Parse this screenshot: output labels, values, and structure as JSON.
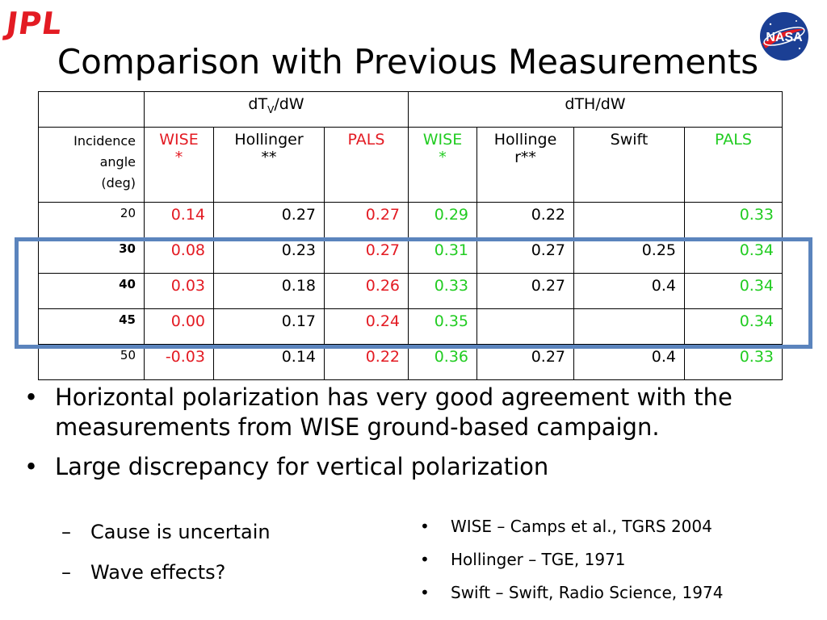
{
  "logo_left": "JPL",
  "logo_right": "NASA",
  "title": "Comparison with Previous Measurements",
  "colors": {
    "wise_pals_v": "#e31b23",
    "wise_pals_h": "#22cc22",
    "highlight": "#5b84bd",
    "jpl": "#e31b23"
  },
  "table": {
    "group_v_main": "dT",
    "group_v_sub": "V",
    "group_v_rest": "/dW",
    "group_h": "dTH/dW",
    "angle_label": [
      "Incidence",
      "angle",
      "(deg)"
    ],
    "cols": {
      "v_wise": [
        "WISE",
        "*"
      ],
      "v_hollinger": [
        "Hollinger",
        "**"
      ],
      "v_pals": "PALS",
      "h_wise": [
        "WISE",
        "*"
      ],
      "h_hollinger": [
        "Hollinge",
        "r**"
      ],
      "h_swift": "Swift",
      "h_pals": "PALS"
    },
    "rows": [
      {
        "angle": "20",
        "v_wise": "0.14",
        "v_hol": "0.27",
        "v_pals": "0.27",
        "h_wise": "0.29",
        "h_hol": "0.22",
        "h_swift": "",
        "h_pals": "0.33"
      },
      {
        "angle": "30",
        "v_wise": "0.08",
        "v_hol": "0.23",
        "v_pals": "0.27",
        "h_wise": "0.31",
        "h_hol": "0.27",
        "h_swift": "0.25",
        "h_pals": "0.34"
      },
      {
        "angle": "40",
        "v_wise": "0.03",
        "v_hol": "0.18",
        "v_pals": "0.26",
        "h_wise": "0.33",
        "h_hol": "0.27",
        "h_swift": "0.4",
        "h_pals": "0.34"
      },
      {
        "angle": "45",
        "v_wise": "0.00",
        "v_hol": "0.17",
        "v_pals": "0.24",
        "h_wise": "0.35",
        "h_hol": "",
        "h_swift": "",
        "h_pals": "0.34"
      },
      {
        "angle": "50",
        "v_wise": "-0.03",
        "v_hol": "0.14",
        "v_pals": "0.22",
        "h_wise": "0.36",
        "h_hol": "0.27",
        "h_swift": "0.4",
        "h_pals": "0.33"
      }
    ]
  },
  "bullets": [
    "Horizontal polarization has very good agreement with the measurements from WISE ground-based campaign.",
    "Large discrepancy for vertical polarization"
  ],
  "sub_bullets": [
    "Cause is uncertain",
    "Wave effects?"
  ],
  "references": [
    "WISE – Camps et al., TGRS 2004",
    "Hollinger – TGE, 1971",
    "Swift – Swift, Radio Science, 1974"
  ]
}
